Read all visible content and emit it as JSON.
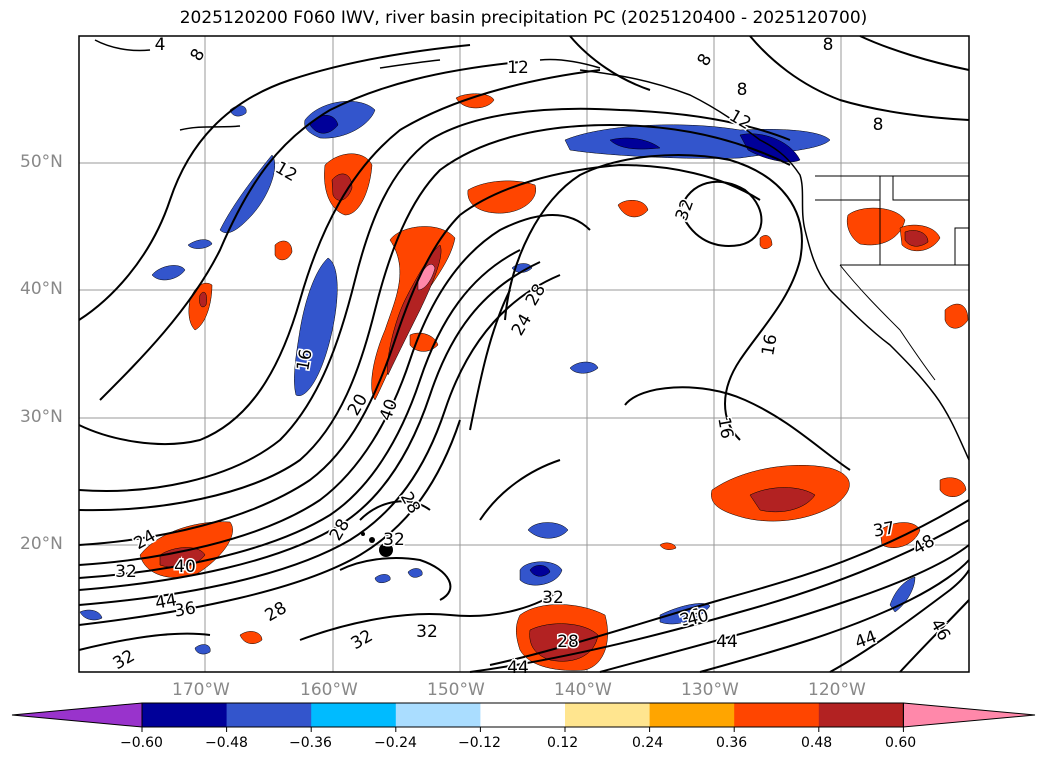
{
  "title": "2025120200 F060 IWV, river basin precipitation PC (2025120400 - 2025120700)",
  "lat_labels": [
    "50°N",
    "40°N",
    "30°N",
    "20°N"
  ],
  "lon_labels": [
    "170°W",
    "160°W",
    "150°W",
    "140°W",
    "130°W",
    "120°W"
  ],
  "colorbar": {
    "colors": [
      "#9933cc",
      "#000099",
      "#3355cc",
      "#00bbff",
      "#aaddff",
      "#ffffff",
      "#ffe58f",
      "#ffa500",
      "#ff4500",
      "#b22222",
      "#ff88aa"
    ],
    "tick_labels": [
      "−0.60",
      "−0.48",
      "−0.36",
      "−0.24",
      "−0.12",
      "0.12",
      "0.24",
      "0.36",
      "0.48",
      "0.60"
    ]
  },
  "contour_labels": [
    "4",
    "8",
    "8",
    "8",
    "8",
    "8",
    "12",
    "12",
    "12",
    "16",
    "16",
    "16",
    "20",
    "24",
    "24",
    "28",
    "28",
    "28",
    "28",
    "28",
    "32",
    "32",
    "32",
    "32",
    "32",
    "32",
    "32",
    "36",
    "36",
    "37",
    "40",
    "40",
    "40",
    "44",
    "44",
    "44",
    "44",
    "46",
    "48"
  ]
}
